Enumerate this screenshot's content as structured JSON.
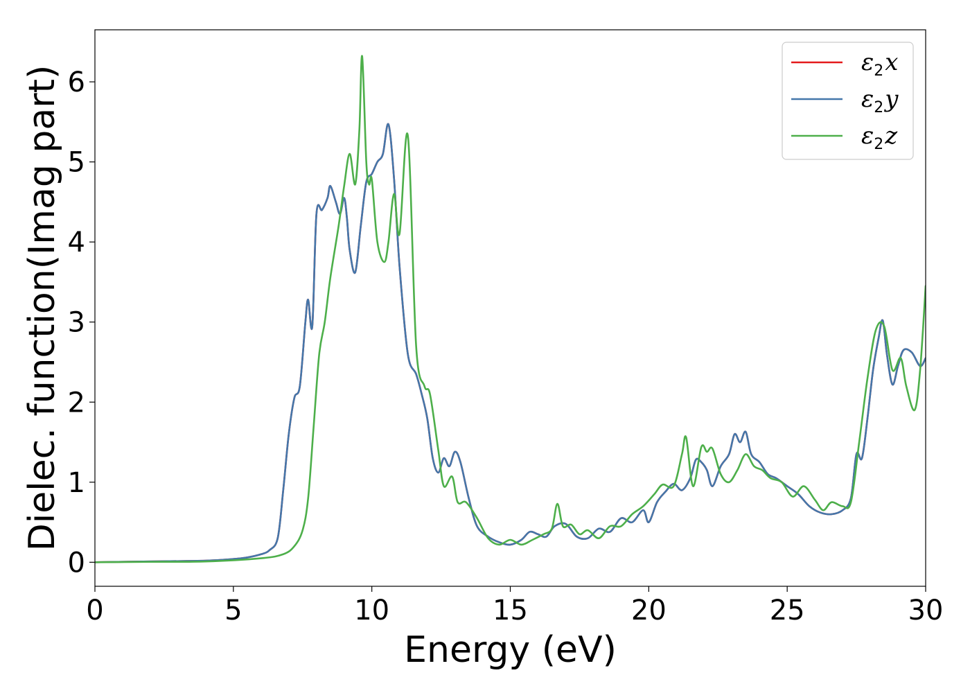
{
  "chart_data": {
    "type": "line",
    "xlabel": "Energy (eV)",
    "ylabel": "Dielec. function(Imag part)",
    "xlim": [
      0,
      30
    ],
    "ylim": [
      -0.3,
      6.65
    ],
    "xticks": [
      0,
      5,
      10,
      15,
      20,
      25,
      30
    ],
    "yticks": [
      0,
      1,
      2,
      3,
      4,
      5,
      6
    ],
    "xtick_labels": [
      "0",
      "5",
      "10",
      "15",
      "20",
      "25",
      "30"
    ],
    "ytick_labels": [
      "0",
      "1",
      "2",
      "3",
      "4",
      "5",
      "6"
    ],
    "grid": false,
    "legend_position": "top-right",
    "series": [
      {
        "name": "ε2x",
        "legend_base": "ε",
        "legend_sub": "2",
        "legend_var": "x",
        "color": "#e41a1c",
        "x": [
          0,
          2,
          4,
          5,
          5.5,
          6,
          6.3,
          6.6,
          6.8,
          7.0,
          7.2,
          7.4,
          7.6,
          7.7,
          7.85,
          8.0,
          8.2,
          8.4,
          8.5,
          8.7,
          8.85,
          9.0,
          9.1,
          9.2,
          9.4,
          9.6,
          9.8,
          10.0,
          10.2,
          10.4,
          10.6,
          10.8,
          11.0,
          11.3,
          11.6,
          11.8,
          12.0,
          12.2,
          12.4,
          12.6,
          12.8,
          13.0,
          13.2,
          13.5,
          13.8,
          14.2,
          14.6,
          15.0,
          15.4,
          15.7,
          16.0,
          16.3,
          16.6,
          17.0,
          17.4,
          17.8,
          18.2,
          18.6,
          19.0,
          19.4,
          19.8,
          20.0,
          20.3,
          20.6,
          20.9,
          21.2,
          21.5,
          21.7,
          21.9,
          22.1,
          22.3,
          22.6,
          22.9,
          23.1,
          23.3,
          23.5,
          23.7,
          24.0,
          24.3,
          24.6,
          25.0,
          25.4,
          25.8,
          26.2,
          26.6,
          27.0,
          27.3,
          27.5,
          27.7,
          27.9,
          28.1,
          28.3,
          28.45,
          28.6,
          28.8,
          29.0,
          29.2,
          29.5,
          29.8,
          30.0
        ],
        "y": [
          0.0,
          0.01,
          0.02,
          0.04,
          0.06,
          0.1,
          0.15,
          0.3,
          0.9,
          1.6,
          2.05,
          2.2,
          3.0,
          3.28,
          2.95,
          4.35,
          4.4,
          4.55,
          4.7,
          4.5,
          4.35,
          4.55,
          4.3,
          3.9,
          3.62,
          4.2,
          4.75,
          4.85,
          5.0,
          5.1,
          5.47,
          4.8,
          3.7,
          2.6,
          2.35,
          2.1,
          1.8,
          1.3,
          1.12,
          1.3,
          1.2,
          1.38,
          1.25,
          0.8,
          0.45,
          0.32,
          0.25,
          0.22,
          0.28,
          0.38,
          0.35,
          0.32,
          0.45,
          0.48,
          0.32,
          0.3,
          0.42,
          0.38,
          0.55,
          0.5,
          0.65,
          0.5,
          0.75,
          0.88,
          0.98,
          0.9,
          1.05,
          1.28,
          1.25,
          1.15,
          0.95,
          1.2,
          1.35,
          1.6,
          1.5,
          1.63,
          1.35,
          1.25,
          1.1,
          1.05,
          0.95,
          0.85,
          0.7,
          0.62,
          0.6,
          0.65,
          0.8,
          1.35,
          1.3,
          1.8,
          2.4,
          2.8,
          3.02,
          2.6,
          2.22,
          2.45,
          2.65,
          2.62,
          2.45,
          2.55
        ]
      },
      {
        "name": "ε2y",
        "legend_base": "ε",
        "legend_sub": "2",
        "legend_var": "y",
        "color": "#4477aa",
        "x": [
          0,
          2,
          4,
          5,
          5.5,
          6,
          6.3,
          6.6,
          6.8,
          7.0,
          7.2,
          7.4,
          7.6,
          7.7,
          7.85,
          8.0,
          8.2,
          8.4,
          8.5,
          8.7,
          8.85,
          9.0,
          9.1,
          9.2,
          9.4,
          9.6,
          9.8,
          10.0,
          10.2,
          10.4,
          10.6,
          10.8,
          11.0,
          11.3,
          11.6,
          11.8,
          12.0,
          12.2,
          12.4,
          12.6,
          12.8,
          13.0,
          13.2,
          13.5,
          13.8,
          14.2,
          14.6,
          15.0,
          15.4,
          15.7,
          16.0,
          16.3,
          16.6,
          17.0,
          17.4,
          17.8,
          18.2,
          18.6,
          19.0,
          19.4,
          19.8,
          20.0,
          20.3,
          20.6,
          20.9,
          21.2,
          21.5,
          21.7,
          21.9,
          22.1,
          22.3,
          22.6,
          22.9,
          23.1,
          23.3,
          23.5,
          23.7,
          24.0,
          24.3,
          24.6,
          25.0,
          25.4,
          25.8,
          26.2,
          26.6,
          27.0,
          27.3,
          27.5,
          27.7,
          27.9,
          28.1,
          28.3,
          28.45,
          28.6,
          28.8,
          29.0,
          29.2,
          29.5,
          29.8,
          30.0
        ],
        "y": [
          0.0,
          0.01,
          0.02,
          0.04,
          0.06,
          0.1,
          0.15,
          0.3,
          0.9,
          1.6,
          2.05,
          2.2,
          3.0,
          3.28,
          2.95,
          4.35,
          4.4,
          4.55,
          4.7,
          4.5,
          4.35,
          4.55,
          4.3,
          3.9,
          3.62,
          4.2,
          4.75,
          4.85,
          5.0,
          5.1,
          5.47,
          4.8,
          3.7,
          2.6,
          2.35,
          2.1,
          1.8,
          1.3,
          1.12,
          1.3,
          1.2,
          1.38,
          1.25,
          0.8,
          0.45,
          0.32,
          0.25,
          0.22,
          0.28,
          0.38,
          0.35,
          0.32,
          0.45,
          0.48,
          0.32,
          0.3,
          0.42,
          0.38,
          0.55,
          0.5,
          0.65,
          0.5,
          0.75,
          0.88,
          0.98,
          0.9,
          1.05,
          1.28,
          1.25,
          1.15,
          0.95,
          1.2,
          1.35,
          1.6,
          1.5,
          1.63,
          1.35,
          1.25,
          1.1,
          1.05,
          0.95,
          0.85,
          0.7,
          0.62,
          0.6,
          0.65,
          0.8,
          1.35,
          1.3,
          1.8,
          2.4,
          2.8,
          3.02,
          2.6,
          2.22,
          2.45,
          2.65,
          2.62,
          2.45,
          2.55
        ]
      },
      {
        "name": "ε2z",
        "legend_base": "ε",
        "legend_sub": "2",
        "legend_var": "z",
        "color": "#4daf4a",
        "x": [
          0,
          2,
          4,
          6,
          6.8,
          7.2,
          7.5,
          7.7,
          7.9,
          8.1,
          8.3,
          8.5,
          8.8,
          9.0,
          9.2,
          9.4,
          9.55,
          9.65,
          9.8,
          9.9,
          10.0,
          10.2,
          10.45,
          10.6,
          10.8,
          11.0,
          11.3,
          11.6,
          11.9,
          12.1,
          12.4,
          12.6,
          12.9,
          13.1,
          13.4,
          13.8,
          14.2,
          14.6,
          15.0,
          15.4,
          15.8,
          16.2,
          16.5,
          16.7,
          16.9,
          17.2,
          17.5,
          17.8,
          18.2,
          18.6,
          19.0,
          19.4,
          19.8,
          20.2,
          20.5,
          20.9,
          21.2,
          21.35,
          21.6,
          21.9,
          22.1,
          22.3,
          22.6,
          22.9,
          23.2,
          23.5,
          23.8,
          24.1,
          24.4,
          24.8,
          25.2,
          25.6,
          26.0,
          26.3,
          26.6,
          27.0,
          27.3,
          27.6,
          27.9,
          28.2,
          28.5,
          28.8,
          29.1,
          29.3,
          29.6,
          29.8,
          30.0
        ],
        "y": [
          0.0,
          0.005,
          0.01,
          0.05,
          0.1,
          0.2,
          0.4,
          0.8,
          1.7,
          2.6,
          3.0,
          3.55,
          4.2,
          4.7,
          5.1,
          4.72,
          5.4,
          6.32,
          5.0,
          4.72,
          4.78,
          4.0,
          3.75,
          4.0,
          4.6,
          4.1,
          5.33,
          2.7,
          2.2,
          2.1,
          1.4,
          0.95,
          1.07,
          0.75,
          0.75,
          0.55,
          0.3,
          0.22,
          0.28,
          0.22,
          0.28,
          0.35,
          0.42,
          0.73,
          0.45,
          0.47,
          0.35,
          0.4,
          0.3,
          0.45,
          0.45,
          0.6,
          0.7,
          0.85,
          0.97,
          0.95,
          1.35,
          1.56,
          0.95,
          1.44,
          1.38,
          1.42,
          1.1,
          1.0,
          1.15,
          1.35,
          1.2,
          1.15,
          1.05,
          1.0,
          0.82,
          0.95,
          0.78,
          0.65,
          0.75,
          0.7,
          0.75,
          1.5,
          2.3,
          2.9,
          2.95,
          2.4,
          2.55,
          2.2,
          1.9,
          2.4,
          3.45
        ]
      }
    ]
  }
}
